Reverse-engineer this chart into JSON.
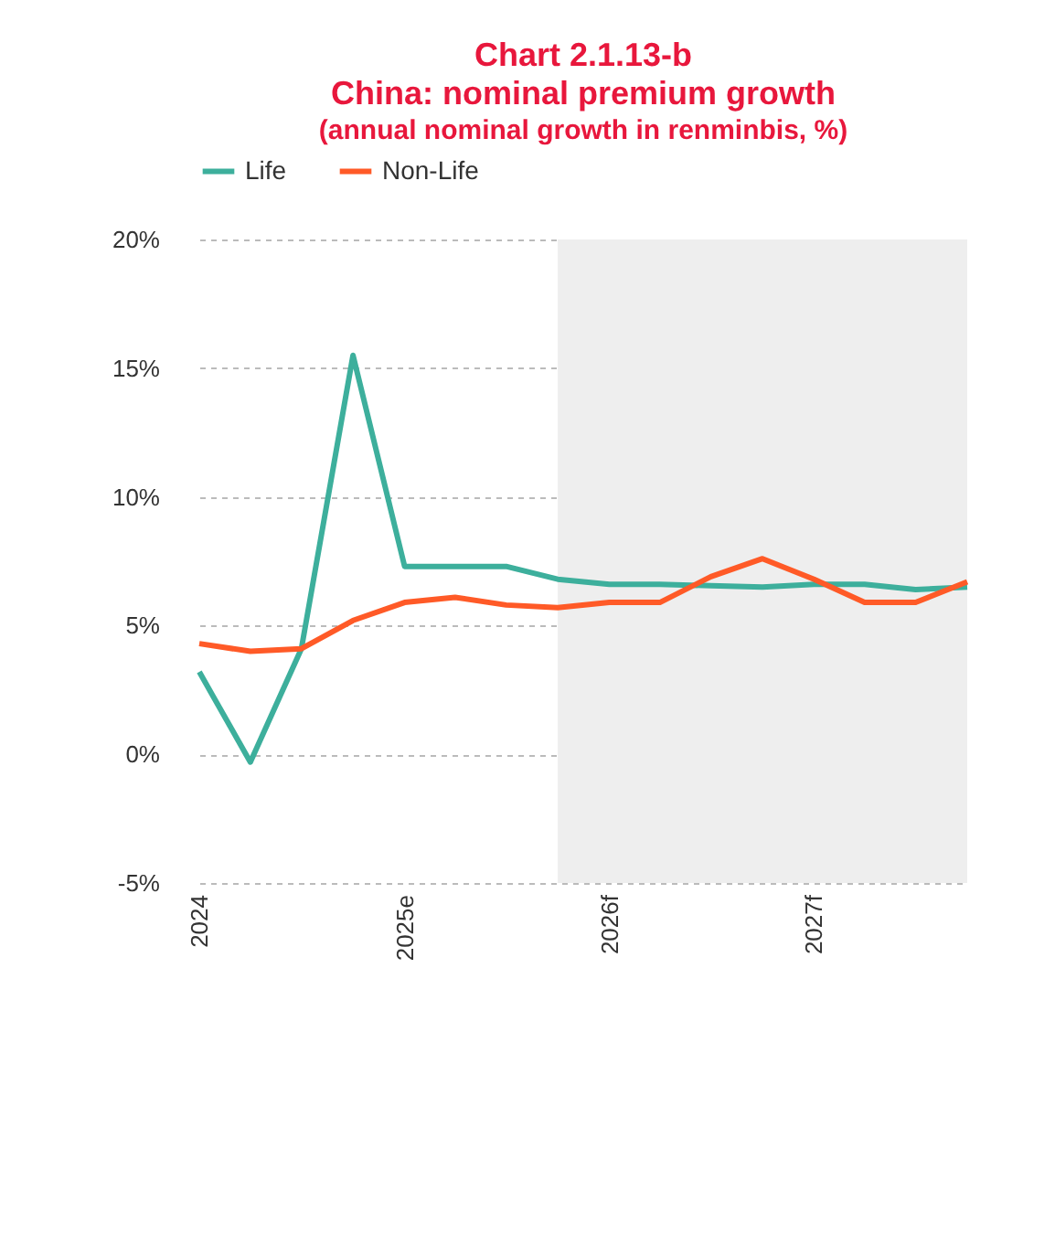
{
  "chart_data": {
    "type": "line",
    "title": "Chart 2.1.13-b\nChina: nominal premium growth",
    "subtitle": "(annual nominal growth in renminbis, %)",
    "x": [
      "2024-01",
      "2024-04",
      "2024-07",
      "2024-10",
      "2025-01",
      "2025-04",
      "2025-07",
      "2025-10",
      "2026-01",
      "2026-04",
      "2026-07",
      "2026-10",
      "2027-01",
      "2027-04",
      "2027-07",
      "2027-10"
    ],
    "xlim": [
      "2024-01",
      "2027-10"
    ],
    "xticks": [
      {
        "value": "2024-01",
        "label": "2024"
      },
      {
        "value": "2025-01",
        "label": "2025e"
      },
      {
        "value": "2026-01",
        "label": "2026f"
      },
      {
        "value": "2027-01",
        "label": "2027f"
      }
    ],
    "ylim": [
      -5,
      20
    ],
    "yticks": [
      {
        "value": -5,
        "label": "-5%"
      },
      {
        "value": 0,
        "label": "0%"
      },
      {
        "value": 5,
        "label": "5%"
      },
      {
        "value": 10,
        "label": "10%"
      },
      {
        "value": 15,
        "label": "15%"
      },
      {
        "value": 20,
        "label": "20%"
      }
    ],
    "series": [
      {
        "name": "Life",
        "color": "#3daf9c",
        "values": [
          3.2,
          -0.3,
          4.1,
          15.5,
          7.3,
          7.3,
          7.3,
          6.8,
          6.6,
          6.6,
          6.55,
          6.5,
          6.6,
          6.6,
          6.4,
          6.5
        ]
      },
      {
        "name": "Non-Life",
        "color": "#ff5a27",
        "values": [
          4.3,
          4.0,
          4.1,
          5.2,
          5.9,
          6.1,
          5.8,
          5.7,
          5.9,
          5.9,
          6.9,
          7.6,
          6.8,
          5.9,
          5.9,
          6.7
        ]
      }
    ],
    "bands": [
      {
        "axis": "x",
        "from": "2025-10",
        "to": "2027-10",
        "color": "#eeeeee"
      }
    ],
    "grid": "y",
    "legend": "top",
    "line_style": "solid",
    "marker": "none"
  }
}
